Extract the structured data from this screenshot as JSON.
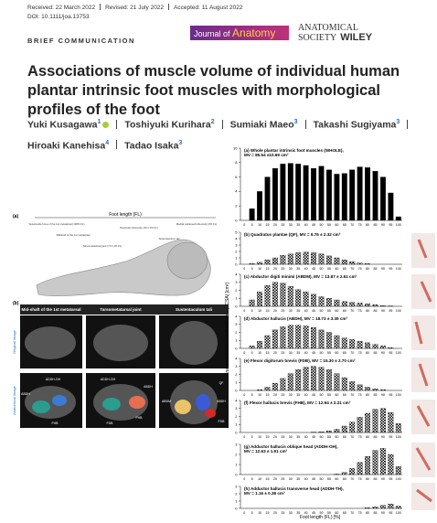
{
  "header": {
    "received": "Received: 22 March 2022",
    "revised": "Revised: 21 July 2022",
    "accepted": "Accepted: 11 August 2022",
    "doi": "DOI: 10.1111/joa.13753"
  },
  "section_label": "BRIEF COMMUNICATION",
  "journal": {
    "prefix": "Journal of",
    "name": "Anatomy",
    "society": "ANATOMICAL",
    "society_line2": "SOCIETY",
    "publisher": "WILEY"
  },
  "title": "Associations of muscle volume of individual human plantar intrinsic foot muscles with morphological profiles of the foot",
  "authors": [
    {
      "name": "Yuki Kusagawa",
      "aff": "1"
    },
    {
      "name": "Toshiyuki Kurihara",
      "aff": "2"
    },
    {
      "name": "Sumiaki Maeo",
      "aff": "3"
    },
    {
      "name": "Takashi Sugiyama",
      "aff": "3"
    },
    {
      "name": "Hiroaki Kanehisa",
      "aff": "4"
    },
    {
      "name": "Tadao Isaka",
      "aff": "3"
    }
  ],
  "figure": {
    "x_label": "Foot length (FL) [%]",
    "y_label": "Anatomical cross-sectional area (ACSA) [cm²]",
    "illustration": {
      "panel_a": "(a)",
      "foot_length": "Foot length (FL)",
      "landmarks": [
        "Sesamoide bone of the 1st metatarsal (100% FL)",
        "Midshaft of the 1st metatarsal",
        "Tarsometatarsal joint (73 ± 2% FL)",
        "Navicular tuberosity (49 ± 2% FL)",
        "Sustentaculum tali",
        "Medial calcaneal tuberosity (0% FL)"
      ],
      "panel_b": "(b)",
      "columns": [
        "Mid-shaft of the 1st metatarsal",
        "Tarsometatarsal joint",
        "Sustentaculum tali"
      ],
      "rows": [
        "Original image",
        "Anatomical image"
      ],
      "muscle_labels": [
        "ADDH-OH",
        "ABDH",
        "FHB",
        "ADDH-OH",
        "ABDH",
        "FHB",
        "FDB",
        "QF",
        "ABDH",
        "ABDM",
        "FDB"
      ]
    }
  },
  "chart_data": [
    {
      "type": "bar",
      "title": "(a) Whole plantar intrinsic foot muscles (WHOLE), MV = 85.54 ±10.69 cm³",
      "color": "#000000",
      "fill_style": "solid",
      "categories": [
        0,
        5,
        10,
        15,
        20,
        25,
        30,
        35,
        40,
        45,
        50,
        55,
        60,
        65,
        70,
        75,
        80,
        85,
        90,
        95,
        100
      ],
      "values": [
        0,
        1.6,
        4.0,
        6.0,
        7.2,
        7.8,
        7.9,
        7.8,
        7.6,
        7.2,
        7.5,
        7.0,
        6.4,
        6.5,
        7.0,
        7.4,
        7.3,
        6.8,
        6.0,
        3.8,
        0.5
      ],
      "ylim": [
        0,
        10
      ],
      "yticks": [
        0,
        2,
        4,
        6,
        8,
        10
      ]
    },
    {
      "type": "bar",
      "title": "(b) Quadratus plantae (QF), MV = 9.75 ± 2.32 cm³",
      "color": "#000000",
      "fill_style": "checker",
      "categories": [
        0,
        5,
        10,
        15,
        20,
        25,
        30,
        35,
        40,
        45,
        50,
        55,
        60,
        65,
        70,
        75,
        80,
        85,
        90,
        95,
        100
      ],
      "values": [
        0,
        0.1,
        0.3,
        0.7,
        1.0,
        1.4,
        1.6,
        1.8,
        1.9,
        1.8,
        1.6,
        1.3,
        1.0,
        0.7,
        0.4,
        0.2,
        0.1,
        0,
        0,
        0,
        0
      ],
      "ylim": [
        0,
        5
      ],
      "yticks": [
        0,
        1,
        2,
        3,
        4,
        5
      ]
    },
    {
      "type": "bar",
      "title": "(c) Abductor digiti minimi (ABDM), MV = 13.87 ± 2.61 cm³",
      "color": "#000000",
      "fill_style": "checker",
      "categories": [
        0,
        5,
        10,
        15,
        20,
        25,
        30,
        35,
        40,
        45,
        50,
        55,
        60,
        65,
        70,
        75,
        80,
        85,
        90,
        95,
        100
      ],
      "values": [
        0,
        0.8,
        1.8,
        2.6,
        3.0,
        2.9,
        2.5,
        2.1,
        1.8,
        1.5,
        1.2,
        1.0,
        0.8,
        0.6,
        0.5,
        0.4,
        0.3,
        0.2,
        0.1,
        0.05,
        0
      ],
      "ylim": [
        0,
        4
      ],
      "yticks": [
        0,
        1,
        2,
        3,
        4
      ]
    },
    {
      "type": "bar",
      "title": "(d) Abductor hallucis (ABDH), MV = 18.73 ± 3.39 cm³",
      "color": "#000000",
      "fill_style": "checker",
      "categories": [
        0,
        5,
        10,
        15,
        20,
        25,
        30,
        35,
        40,
        45,
        50,
        55,
        60,
        65,
        70,
        75,
        80,
        85,
        90,
        95,
        100
      ],
      "values": [
        0,
        0.3,
        0.9,
        1.6,
        2.3,
        2.7,
        2.9,
        2.9,
        2.8,
        2.6,
        2.3,
        2.0,
        1.6,
        1.3,
        1.1,
        0.9,
        0.7,
        0.5,
        0.3,
        0.1,
        0
      ],
      "ylim": [
        0,
        4
      ],
      "yticks": [
        0,
        1,
        2,
        3,
        4
      ]
    },
    {
      "type": "bar",
      "title": "(e) Flexor digitorum brevis (FDB), MV = 15.30 ± 2.70 cm³",
      "color": "#000000",
      "fill_style": "checker",
      "categories": [
        0,
        5,
        10,
        15,
        20,
        25,
        30,
        35,
        40,
        45,
        50,
        55,
        60,
        65,
        70,
        75,
        80,
        85,
        90,
        95,
        100
      ],
      "values": [
        0,
        0,
        0.1,
        0.4,
        0.9,
        1.5,
        2.1,
        2.6,
        2.9,
        3.0,
        2.9,
        2.6,
        2.1,
        1.6,
        1.1,
        0.7,
        0.4,
        0.2,
        0.1,
        0,
        0
      ],
      "ylim": [
        0,
        4
      ],
      "yticks": [
        0,
        1,
        2,
        3,
        4
      ]
    },
    {
      "type": "bar",
      "title": "(f) Flexor hallucis brevis (FHB), MV = 12.94 ± 2.21 cm³",
      "color": "#000000",
      "fill_style": "checker",
      "categories": [
        0,
        5,
        10,
        15,
        20,
        25,
        30,
        35,
        40,
        45,
        50,
        55,
        60,
        65,
        70,
        75,
        80,
        85,
        90,
        95,
        100
      ],
      "values": [
        0,
        0,
        0,
        0,
        0,
        0,
        0,
        0,
        0,
        0.05,
        0.1,
        0.2,
        0.4,
        0.8,
        1.3,
        1.9,
        2.4,
        2.9,
        3.0,
        2.5,
        1.1
      ],
      "ylim": [
        0,
        4
      ],
      "yticks": [
        0,
        1,
        2,
        3,
        4
      ]
    },
    {
      "type": "bar",
      "title": "(g) Adductor hallucis oblique head (ADDH-OH), MV = 12.63 ± 1.91 cm³",
      "color": "#000000",
      "fill_style": "checker",
      "categories": [
        0,
        5,
        10,
        15,
        20,
        25,
        30,
        35,
        40,
        45,
        50,
        55,
        60,
        65,
        70,
        75,
        80,
        85,
        90,
        95,
        100
      ],
      "values": [
        0,
        0,
        0,
        0,
        0,
        0,
        0,
        0,
        0,
        0,
        0,
        0,
        0.05,
        0.2,
        0.6,
        1.2,
        1.8,
        2.4,
        2.6,
        2.0,
        0.8
      ],
      "ylim": [
        0,
        3
      ],
      "yticks": [
        0,
        1,
        2,
        3
      ]
    },
    {
      "type": "bar",
      "title": "(h) Adductor hallucis transverse head (ADDH-TH), MV = 1.16 ± 0.38 cm³",
      "color": "#000000",
      "fill_style": "checker",
      "categories": [
        0,
        5,
        10,
        15,
        20,
        25,
        30,
        35,
        40,
        45,
        50,
        55,
        60,
        65,
        70,
        75,
        80,
        85,
        90,
        95,
        100
      ],
      "values": [
        0,
        0,
        0,
        0,
        0,
        0,
        0,
        0,
        0,
        0,
        0,
        0,
        0,
        0,
        0,
        0,
        0.1,
        0.2,
        0.4,
        0.6,
        0.3
      ],
      "ylim": [
        0,
        3
      ],
      "yticks": [
        0,
        1,
        2,
        3
      ]
    }
  ]
}
